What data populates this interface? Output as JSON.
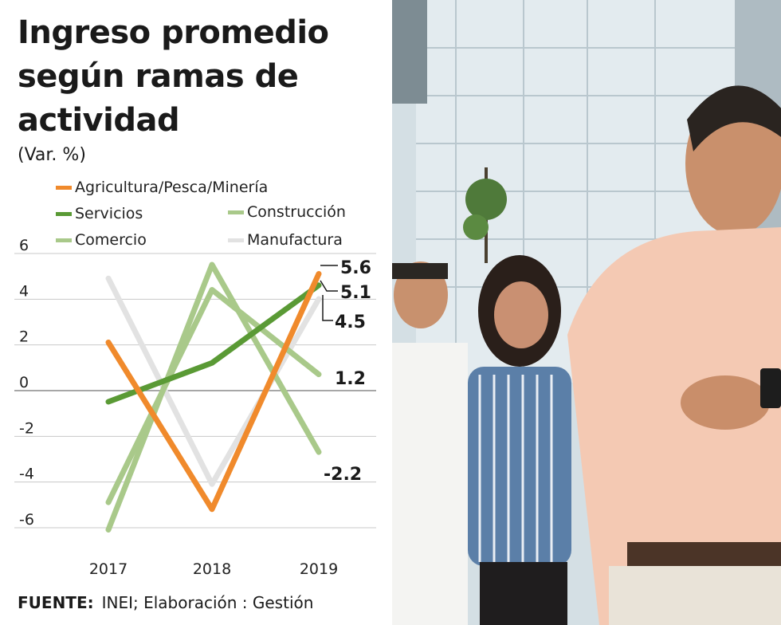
{
  "chart_data": {
    "type": "line",
    "title": "Ingreso promedio según ramas de actividad",
    "subtitle": "(Var. %)",
    "x": [
      "2017",
      "2018",
      "2019"
    ],
    "ylim": [
      -6,
      6
    ],
    "yticks": [
      "6",
      "4",
      "2",
      "0",
      "-2",
      "-4",
      "-6"
    ],
    "series": [
      {
        "name": "Agricultura/Pesca/Minería",
        "color": "#f08a2c",
        "values": [
          2.6,
          -4.7,
          5.6
        ]
      },
      {
        "name": "Servicios",
        "color": "#5a9a35",
        "values": [
          0.0,
          1.7,
          5.1
        ]
      },
      {
        "name": "Construcción",
        "color": "#a9c98a",
        "values": [
          -4.4,
          4.9,
          1.2
        ]
      },
      {
        "name": "Comercio",
        "color": "#a9c98a",
        "values": [
          -5.6,
          6.0,
          -2.2
        ]
      },
      {
        "name": "Manufactura",
        "color": "#e2e2e2",
        "values": [
          5.4,
          -3.6,
          4.5
        ]
      }
    ],
    "end_labels": [
      "5.6",
      "5.1",
      "4.5",
      "1.2",
      "-2.2"
    ],
    "grid": true
  },
  "source_label": "FUENTE:",
  "source_text": "INEI; Elaboración : Gestión"
}
